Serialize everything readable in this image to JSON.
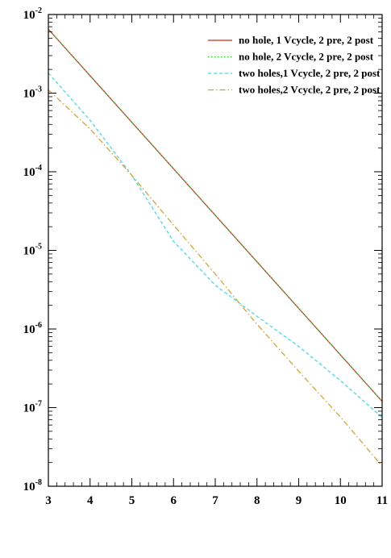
{
  "chart_data": {
    "type": "line",
    "title": "",
    "xlabel": "",
    "ylabel": "",
    "xlim": [
      3,
      11
    ],
    "ylim": [
      1e-08,
      0.01
    ],
    "yscale": "log",
    "grid": false,
    "legend_position": "top-right",
    "x_ticks": [
      3,
      4,
      5,
      6,
      7,
      8,
      9,
      10,
      11
    ],
    "x_tick_labels": [
      "3",
      "4",
      "5",
      "6",
      "7",
      "8",
      "9",
      "10",
      "11"
    ],
    "y_ticks": [
      1e-08,
      1e-07,
      1e-06,
      1e-05,
      0.0001,
      0.001,
      0.01
    ],
    "y_tick_mantissa": "10",
    "y_tick_exponents": [
      "-8",
      "-7",
      "-6",
      "-5",
      "-4",
      "-3",
      "-2"
    ],
    "series": [
      {
        "name": "no hole, 1 Vcycle, 2 pre, 2 post",
        "color": "#cc2a1a",
        "dash": "solid",
        "x": [
          3,
          11
        ],
        "y": [
          0.0065,
          1.2e-07
        ]
      },
      {
        "name": "no hole, 2 Vcycle, 2 pre, 2 post",
        "color": "#22cc22",
        "dash": "dotted",
        "x": [
          3,
          11
        ],
        "y": [
          0.0065,
          1.2e-07
        ]
      },
      {
        "name": "two holes,1 Vcycle, 2 pre, 2 post",
        "color": "#33ddee",
        "dash": "dashed",
        "x": [
          3,
          4,
          5,
          6,
          7,
          8,
          9,
          10,
          11
        ],
        "y": [
          0.0018,
          0.00045,
          9e-05,
          1.3e-05,
          3.6e-06,
          1.45e-06,
          6e-07,
          2.2e-07,
          7.5e-08
        ]
      },
      {
        "name": "two holes,2 Vcycle, 2 pre, 2 post",
        "color": "#d4a020",
        "dash": "dashdot",
        "x": [
          3,
          4,
          5,
          6,
          7,
          8,
          9,
          10,
          11
        ],
        "y": [
          0.0011,
          0.00035,
          9e-05,
          2.1e-05,
          5e-06,
          1.15e-06,
          2.9e-07,
          7.6e-08,
          1.8e-08
        ]
      }
    ]
  }
}
